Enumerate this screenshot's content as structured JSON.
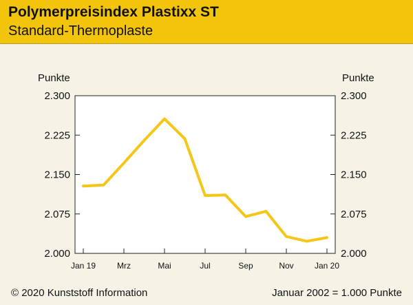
{
  "header": {
    "title": "Polymerpreisindex Plastixx ST",
    "subtitle": "Standard-Thermoplaste"
  },
  "footer": {
    "copyright": "© 2020 Kunststoff Information",
    "note": "Januar 2002 = 1.000 Punkte"
  },
  "colors": {
    "accent": "#f2c40a",
    "line": "#f5c518",
    "background": "#f6f3e6",
    "plot_background": "#ffffff"
  },
  "chart_data": {
    "type": "line",
    "title": "Polymerpreisindex Plastixx ST",
    "subtitle": "Standard-Thermoplaste",
    "ylabel_left": "Punkte",
    "ylabel_right": "Punkte",
    "ylim": [
      2.0,
      2.3
    ],
    "yticks": [
      "2.300",
      "2.225",
      "2.150",
      "2.075",
      "2.000"
    ],
    "ytick_values": [
      2.3,
      2.225,
      2.15,
      2.075,
      2.0
    ],
    "xtick_labels": [
      "Jan 19",
      "Mrz",
      "Mai",
      "Jul",
      "Sep",
      "Nov",
      "Jan 20"
    ],
    "xtick_index": [
      0,
      2,
      4,
      6,
      8,
      10,
      12
    ],
    "x": [
      "Jan 19",
      "Feb 19",
      "Mrz 19",
      "Apr 19",
      "Mai 19",
      "Jun 19",
      "Jul 19",
      "Aug 19",
      "Sep 19",
      "Okt 19",
      "Nov 19",
      "Dez 19",
      "Jan 20"
    ],
    "series": [
      {
        "values": [
          2.128,
          2.13,
          2.172,
          2.215,
          2.256,
          2.218,
          2.11,
          2.111,
          2.07,
          2.08,
          2.032,
          2.023,
          2.03
        ]
      }
    ],
    "grid": false
  }
}
